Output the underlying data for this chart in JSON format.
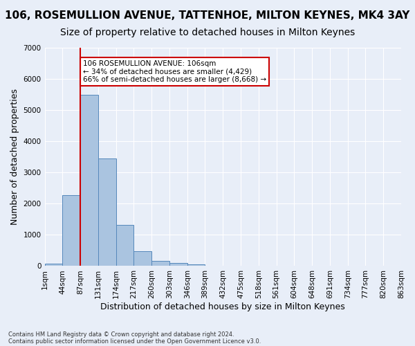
{
  "title": "106, ROSEMULLION AVENUE, TATTENHOE, MILTON KEYNES, MK4 3AY",
  "subtitle": "Size of property relative to detached houses in Milton Keynes",
  "xlabel": "Distribution of detached houses by size in Milton Keynes",
  "ylabel": "Number of detached properties",
  "footnote1": "Contains HM Land Registry data © Crown copyright and database right 2024.",
  "footnote2": "Contains public sector information licensed under the Open Government Licence v3.0.",
  "bar_values": [
    75,
    2270,
    5480,
    3450,
    1310,
    470,
    155,
    90,
    55,
    0,
    0,
    0,
    0,
    0,
    0,
    0,
    0,
    0,
    0,
    0
  ],
  "x_labels": [
    "1sqm",
    "44sqm",
    "87sqm",
    "131sqm",
    "174sqm",
    "217sqm",
    "260sqm",
    "303sqm",
    "346sqm",
    "389sqm",
    "432sqm",
    "475sqm",
    "518sqm",
    "561sqm",
    "604sqm",
    "648sqm",
    "691sqm",
    "734sqm",
    "777sqm",
    "820sqm",
    "863sqm"
  ],
  "bar_color": "#aac4e0",
  "bar_edge_color": "#5588bb",
  "vline_x": 2,
  "vline_color": "#cc0000",
  "annotation_text": "106 ROSEMULLION AVENUE: 106sqm\n← 34% of detached houses are smaller (4,429)\n66% of semi-detached houses are larger (8,668) →",
  "annotation_box_color": "#ffffff",
  "annotation_box_edge_color": "#cc0000",
  "background_color": "#e8eef8",
  "plot_bg_color": "#e8eef8",
  "ylim": [
    0,
    7000
  ],
  "yticks": [
    0,
    1000,
    2000,
    3000,
    4000,
    5000,
    6000,
    7000
  ],
  "grid_color": "#ffffff",
  "title_fontsize": 11,
  "subtitle_fontsize": 10,
  "axis_label_fontsize": 9,
  "tick_fontsize": 7.5
}
